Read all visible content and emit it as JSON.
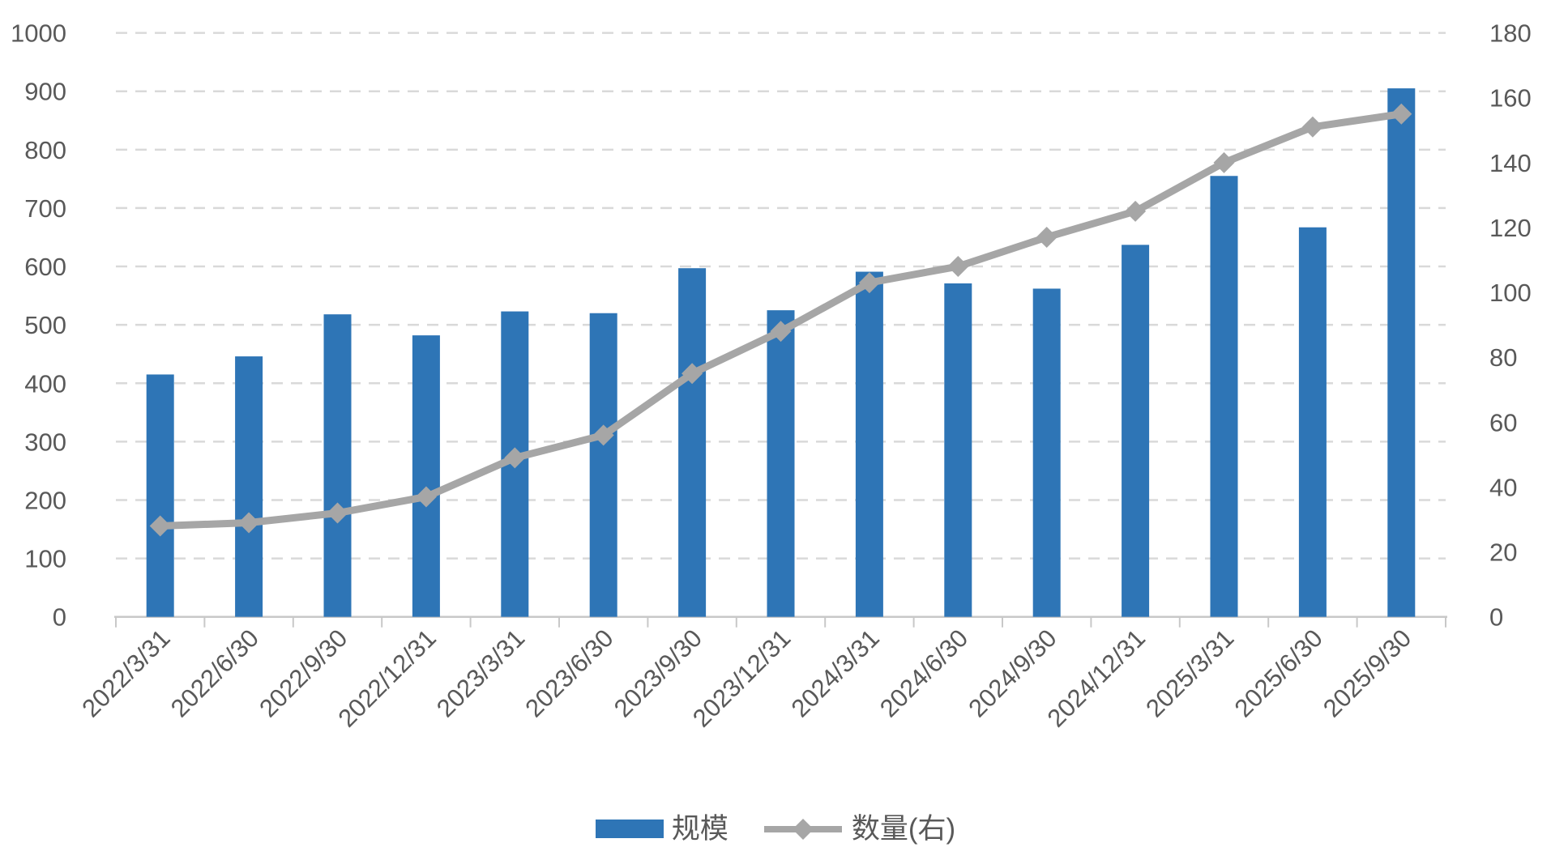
{
  "chart_data": {
    "type": "bar",
    "subtype": "combo-bar-line",
    "title": "",
    "categories": [
      "2022/3/31",
      "2022/6/30",
      "2022/9/30",
      "2022/12/31",
      "2023/3/31",
      "2023/6/30",
      "2023/9/30",
      "2023/12/31",
      "2024/3/31",
      "2024/6/30",
      "2024/9/30",
      "2024/12/31",
      "2025/3/31",
      "2025/6/30",
      "2025/9/30"
    ],
    "series": [
      {
        "name": "规模",
        "type": "bar",
        "axis": "left",
        "color": "#2E75B6",
        "values": [
          415,
          446,
          518,
          482,
          523,
          520,
          597,
          525,
          591,
          571,
          562,
          637,
          755,
          667,
          905
        ]
      },
      {
        "name": "数量(右)",
        "type": "line",
        "axis": "right",
        "color": "#A6A6A6",
        "marker": "diamond",
        "values": [
          28,
          29,
          32,
          37,
          49,
          56,
          75,
          88,
          103,
          108,
          117,
          125,
          140,
          151,
          155
        ]
      }
    ],
    "left_axis": {
      "min": 0,
      "max": 1000,
      "step": 100,
      "tick_labels": [
        "0",
        "100",
        "200",
        "300",
        "400",
        "500",
        "600",
        "700",
        "800",
        "900",
        "1000"
      ]
    },
    "right_axis": {
      "min": 0,
      "max": 180,
      "step": 20,
      "tick_labels": [
        "0",
        "20",
        "40",
        "60",
        "80",
        "100",
        "120",
        "140",
        "160",
        "180"
      ]
    },
    "grid": "horizontal-dashed",
    "legend_position": "bottom-center",
    "x_label_rotation": -45,
    "colors": {
      "background": "#FFFFFF",
      "gridline": "#D9D9D9",
      "axis_line": "#C8C8C8",
      "tick_text": "#595959"
    }
  }
}
